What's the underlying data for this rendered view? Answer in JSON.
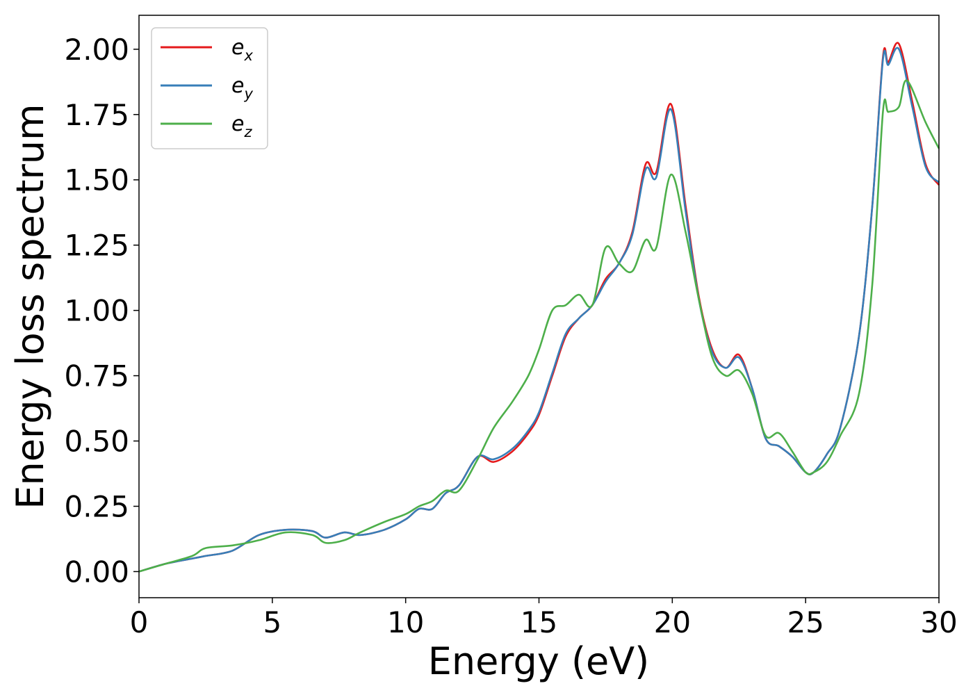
{
  "chart_data": {
    "type": "line",
    "xlabel": "Energy (eV)",
    "ylabel": "Energy loss spectrum",
    "xlim": [
      0,
      30
    ],
    "ylim": [
      -0.1,
      2.13
    ],
    "xticks": [
      "0",
      "5",
      "10",
      "15",
      "20",
      "25",
      "30"
    ],
    "yticks": [
      "0.00",
      "0.25",
      "0.50",
      "0.75",
      "1.00",
      "1.25",
      "1.50",
      "1.75",
      "2.00"
    ],
    "grid": false,
    "legend_position": "top-left",
    "series": [
      {
        "name": "e_x",
        "base": "e",
        "sub": "x",
        "color": "#e41a1c",
        "x": [
          0,
          1,
          2,
          2.5,
          3.5,
          4.5,
          5.5,
          6.5,
          7,
          7.7,
          8.3,
          9.2,
          10,
          10.5,
          11,
          11.5,
          12,
          12.7,
          13.3,
          14,
          14.6,
          15,
          15.5,
          16,
          16.5,
          17,
          17.5,
          18,
          18.5,
          19,
          19.4,
          19.95,
          20.5,
          21,
          21.5,
          22,
          22.5,
          23,
          23.5,
          24,
          24.5,
          25,
          25.3,
          25.8,
          26.3,
          27,
          27.5,
          27.9,
          28.1,
          28.5,
          29,
          29.5,
          30
        ],
        "y": [
          0.0,
          0.03,
          0.05,
          0.06,
          0.08,
          0.14,
          0.16,
          0.155,
          0.13,
          0.15,
          0.14,
          0.16,
          0.2,
          0.24,
          0.24,
          0.3,
          0.33,
          0.44,
          0.42,
          0.46,
          0.53,
          0.6,
          0.75,
          0.9,
          0.97,
          1.02,
          1.12,
          1.18,
          1.3,
          1.56,
          1.53,
          1.79,
          1.4,
          1.05,
          0.85,
          0.78,
          0.83,
          0.7,
          0.51,
          0.48,
          0.44,
          0.38,
          0.38,
          0.45,
          0.55,
          0.9,
          1.4,
          1.97,
          1.95,
          2.02,
          1.8,
          1.56,
          1.48
        ]
      },
      {
        "name": "e_y",
        "base": "e",
        "sub": "y",
        "color": "#377eb8",
        "x": [
          0,
          1,
          2,
          2.5,
          3.5,
          4.5,
          5.5,
          6.5,
          7,
          7.7,
          8.3,
          9.2,
          10,
          10.5,
          11,
          11.5,
          12,
          12.7,
          13.3,
          14,
          14.6,
          15,
          15.5,
          16,
          16.5,
          17,
          17.5,
          18,
          18.5,
          19,
          19.4,
          19.95,
          20.5,
          21,
          21.5,
          22,
          22.5,
          23,
          23.5,
          24,
          24.5,
          25,
          25.3,
          25.8,
          26.3,
          27,
          27.5,
          27.9,
          28.1,
          28.5,
          29,
          29.5,
          30
        ],
        "y": [
          0.0,
          0.03,
          0.05,
          0.06,
          0.08,
          0.14,
          0.16,
          0.155,
          0.13,
          0.15,
          0.14,
          0.16,
          0.2,
          0.24,
          0.24,
          0.3,
          0.33,
          0.44,
          0.43,
          0.47,
          0.54,
          0.61,
          0.76,
          0.91,
          0.97,
          1.02,
          1.11,
          1.18,
          1.29,
          1.54,
          1.51,
          1.77,
          1.38,
          1.04,
          0.84,
          0.78,
          0.82,
          0.7,
          0.51,
          0.48,
          0.44,
          0.38,
          0.38,
          0.45,
          0.55,
          0.9,
          1.4,
          1.96,
          1.94,
          2.0,
          1.78,
          1.55,
          1.49
        ]
      },
      {
        "name": "e_z",
        "base": "e",
        "sub": "z",
        "color": "#4daf4a",
        "x": [
          0,
          1,
          2,
          2.5,
          3.5,
          4.5,
          5.5,
          6.5,
          7,
          7.7,
          8.3,
          9.2,
          10,
          10.5,
          11,
          11.5,
          12,
          12.7,
          13.3,
          14,
          14.6,
          15,
          15.5,
          16,
          16.5,
          17,
          17.5,
          18,
          18.5,
          19,
          19.4,
          19.95,
          20.5,
          21,
          21.5,
          22,
          22.5,
          23,
          23.5,
          24,
          24.5,
          25,
          25.3,
          25.8,
          26.3,
          27,
          27.5,
          27.9,
          28.1,
          28.5,
          28.8,
          29.5,
          30
        ],
        "y": [
          0.0,
          0.03,
          0.06,
          0.09,
          0.1,
          0.12,
          0.15,
          0.14,
          0.11,
          0.12,
          0.15,
          0.19,
          0.22,
          0.25,
          0.27,
          0.31,
          0.31,
          0.43,
          0.55,
          0.65,
          0.75,
          0.85,
          1.0,
          1.02,
          1.06,
          1.02,
          1.24,
          1.18,
          1.15,
          1.27,
          1.24,
          1.52,
          1.3,
          1.04,
          0.82,
          0.75,
          0.77,
          0.68,
          0.52,
          0.53,
          0.46,
          0.38,
          0.38,
          0.42,
          0.52,
          0.68,
          1.1,
          1.76,
          1.76,
          1.78,
          1.88,
          1.72,
          1.62
        ]
      }
    ]
  }
}
